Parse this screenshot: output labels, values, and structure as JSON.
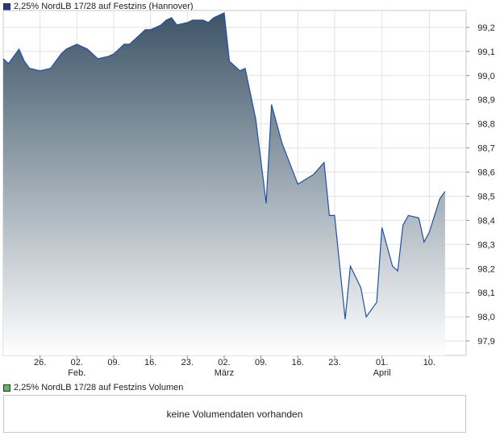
{
  "legend_price": {
    "label": "2,25% NordLB 17/28 auf Festzins (Hannover)",
    "color": "#1e3a8a"
  },
  "legend_volume": {
    "label": "2,25% NordLB 17/28 auf Festzins Volumen",
    "color": "#5cb85c"
  },
  "volume_panel": {
    "message": "keine Volumendaten vorhanden"
  },
  "chart_data": {
    "type": "area",
    "y_ticks": [
      "99,2",
      "99,1",
      "99,0",
      "98,9",
      "98,8",
      "98,7",
      "98,6",
      "98,5",
      "98,4",
      "98,3",
      "98,2",
      "98,1",
      "98,0",
      "97,9"
    ],
    "ylim": [
      97.84,
      99.27
    ],
    "x_tick_labels": [
      "26.",
      "02.",
      "09.",
      "16.",
      "23.",
      "02.",
      "09.",
      "16.",
      "23.",
      "01.",
      "10."
    ],
    "x_tick_dates": [
      "2018-01-26",
      "2018-02-02",
      "2018-02-09",
      "2018-02-16",
      "2018-02-23",
      "2018-03-02",
      "2018-03-09",
      "2018-03-16",
      "2018-03-23",
      "2018-04-01",
      "2018-04-10"
    ],
    "month_labels": [
      {
        "label": "Feb.",
        "date": "2018-02-02"
      },
      {
        "label": "März",
        "date": "2018-03-02"
      },
      {
        "label": "April",
        "date": "2018-04-01"
      }
    ],
    "xlim": [
      "2018-01-19",
      "2018-04-17"
    ],
    "grid": true,
    "line_color": "#1f4fa8",
    "fill_top_color": "#3d5568",
    "fill_bottom_color": "#ffffff",
    "series": [
      {
        "name": "2,25% NordLB 17/28 auf Festzins (Hannover)",
        "points": [
          [
            "2018-01-19",
            99.07
          ],
          [
            "2018-01-20",
            99.05
          ],
          [
            "2018-01-22",
            99.11
          ],
          [
            "2018-01-23",
            99.06
          ],
          [
            "2018-01-24",
            99.03
          ],
          [
            "2018-01-26",
            99.02
          ],
          [
            "2018-01-28",
            99.03
          ],
          [
            "2018-01-30",
            99.09
          ],
          [
            "2018-01-31",
            99.11
          ],
          [
            "2018-02-02",
            99.13
          ],
          [
            "2018-02-04",
            99.11
          ],
          [
            "2018-02-06",
            99.07
          ],
          [
            "2018-02-08",
            99.08
          ],
          [
            "2018-02-09",
            99.09
          ],
          [
            "2018-02-11",
            99.13
          ],
          [
            "2018-02-12",
            99.13
          ],
          [
            "2018-02-13",
            99.15
          ],
          [
            "2018-02-14",
            99.17
          ],
          [
            "2018-02-15",
            99.19
          ],
          [
            "2018-02-16",
            99.19
          ],
          [
            "2018-02-18",
            99.21
          ],
          [
            "2018-02-19",
            99.23
          ],
          [
            "2018-02-20",
            99.24
          ],
          [
            "2018-02-21",
            99.21
          ],
          [
            "2018-02-23",
            99.22
          ],
          [
            "2018-02-24",
            99.23
          ],
          [
            "2018-02-26",
            99.23
          ],
          [
            "2018-02-27",
            99.22
          ],
          [
            "2018-02-28",
            99.24
          ],
          [
            "2018-03-01",
            99.25
          ],
          [
            "2018-03-02",
            99.26
          ],
          [
            "2018-03-03",
            99.06
          ],
          [
            "2018-03-05",
            99.02
          ],
          [
            "2018-03-06",
            99.03
          ],
          [
            "2018-03-08",
            98.82
          ],
          [
            "2018-03-10",
            98.47
          ],
          [
            "2018-03-11",
            98.88
          ],
          [
            "2018-03-13",
            98.72
          ],
          [
            "2018-03-16",
            98.55
          ],
          [
            "2018-03-19",
            98.59
          ],
          [
            "2018-03-21",
            98.64
          ],
          [
            "2018-03-22",
            98.42
          ],
          [
            "2018-03-23",
            98.42
          ],
          [
            "2018-03-25",
            97.99
          ],
          [
            "2018-03-26",
            98.21
          ],
          [
            "2018-03-28",
            98.12
          ],
          [
            "2018-03-29",
            98.0
          ],
          [
            "2018-03-31",
            98.06
          ],
          [
            "2018-04-01",
            98.37
          ],
          [
            "2018-04-03",
            98.21
          ],
          [
            "2018-04-04",
            98.19
          ],
          [
            "2018-04-05",
            98.38
          ],
          [
            "2018-04-06",
            98.42
          ],
          [
            "2018-04-08",
            98.41
          ],
          [
            "2018-04-09",
            98.31
          ],
          [
            "2018-04-10",
            98.35
          ],
          [
            "2018-04-12",
            98.49
          ],
          [
            "2018-04-13",
            98.52
          ]
        ]
      }
    ]
  }
}
